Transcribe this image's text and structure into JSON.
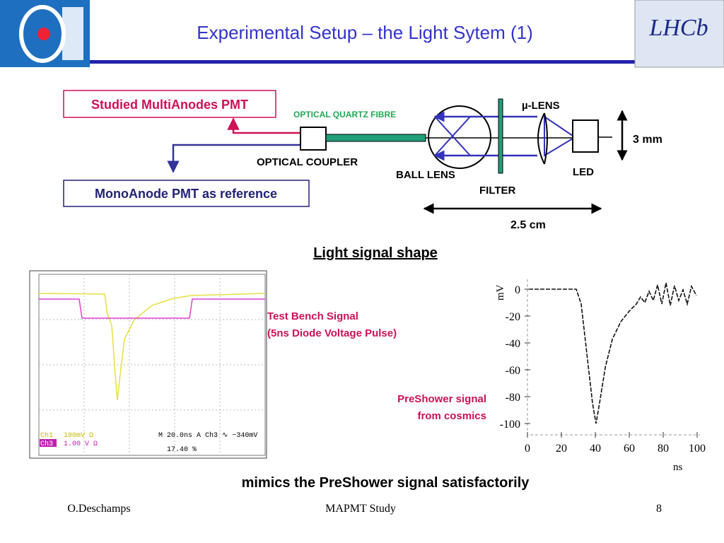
{
  "header": {
    "title": "Experimental Setup – the Light Sytem (1)",
    "right_logo": "LHCb"
  },
  "setup": {
    "studied_pmt": "Studied MultiAnodes PMT",
    "reference_pmt": "MonoAnode PMT as reference",
    "fibre": "OPTICAL QUARTZ FIBRE",
    "coupler": "OPTICAL COUPLER",
    "ball_lens": "BALL LENS",
    "mu_lens": "µ-LENS",
    "filter": "FILTER",
    "led": "LED",
    "height": "3 mm",
    "length": "2.5 cm"
  },
  "section_title": "Light signal shape",
  "scope": {
    "ch1": "Ch1",
    "ch1_scale": "100mV Ω",
    "ch3": "Ch3",
    "ch3_scale": "1.00 V Ω",
    "timebase": "M 20.0ns  A  Ch3  ∿ −340mV",
    "trigger": "17.40 %"
  },
  "test_bench": {
    "line1": "Test Bench Signal",
    "line2": "(5ns Diode Voltage Pulse)"
  },
  "preshower": {
    "line1": "PreShower signal",
    "line2": "from cosmics",
    "ylabel": "mV",
    "xlabel": "ns",
    "yticks": [
      0,
      -20,
      -40,
      -60,
      -80,
      -100
    ],
    "xticks": [
      0,
      20,
      40,
      60,
      80,
      100
    ]
  },
  "conclusion": "mimics the PreShower signal satisfactorily",
  "footer": {
    "author": "O.Deschamps",
    "title": "MAPMT Study",
    "page": "8"
  }
}
